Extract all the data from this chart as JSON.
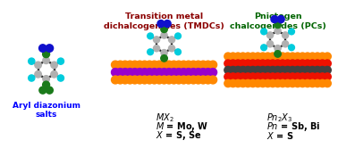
{
  "title_tmdc": "Transition metal\ndichalcogenides (TMDCs)",
  "title_pc": "Pnictogen\nchalcogenides (PCs)",
  "label_aryl": "Aryl diazonium\nsalts",
  "formula_tmdc_line1": "MX",
  "formula_tmdc_line1_sub": "2",
  "formula_tmdc_line2": "M = Mo, W",
  "formula_tmdc_line3": "X = S, Se",
  "formula_pc_line1": "Pn",
  "formula_pc_line1_sub": "2",
  "formula_pc_line1_b": "X",
  "formula_pc_line1_bsub": "3",
  "formula_pc_line2": "Pn = Sb, Bi",
  "formula_pc_line3": "X = S",
  "color_title_tmdc": "#8B0000",
  "color_title_pc": "#006400",
  "color_label_aryl": "#0000FF",
  "color_formula": "#000000",
  "bg_color": "#FFFFFF",
  "mol_gray": "#B0B0B0",
  "mol_black": "#202020",
  "mol_cyan": "#00CCDD",
  "mol_dark_green": "#1A7A1A",
  "mol_blue": "#1010CC",
  "mol_orange": "#FF8800",
  "mol_purple": "#9900CC",
  "mol_red": "#EE1100",
  "mol_darkgray": "#404040"
}
